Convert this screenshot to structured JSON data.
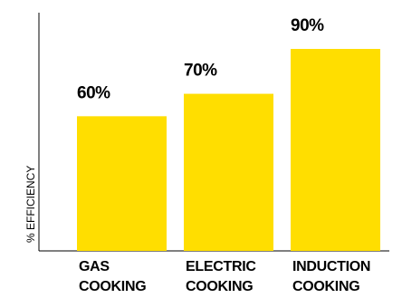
{
  "chart_data": {
    "type": "bar",
    "title": "",
    "xlabel": "",
    "ylabel": "% EFFICIENCY",
    "categories": [
      [
        "GAS",
        "COOKING"
      ],
      [
        "ELECTRIC",
        "COOKING"
      ],
      [
        "INDUCTION",
        "COOKING"
      ]
    ],
    "values": [
      60,
      70,
      90
    ],
    "value_labels": [
      "60%",
      "70%",
      "90%"
    ],
    "ylim": [
      0,
      100
    ],
    "grid": false,
    "legend": "none",
    "bar_color": "#FFDE00",
    "axis_color": "#000000"
  }
}
